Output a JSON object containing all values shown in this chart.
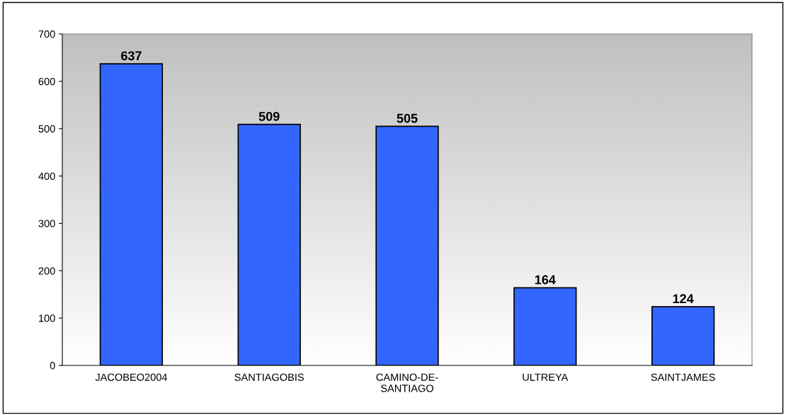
{
  "chart_data": {
    "type": "bar",
    "categories": [
      "JACOBEO2004",
      "SANTIAGOBIS",
      "CAMINO-DE-\nSANTIAGO",
      "ULTREYA",
      "SAINTJAMES"
    ],
    "values": [
      637,
      509,
      505,
      164,
      124
    ],
    "color": "#3366ff",
    "ylim": [
      0,
      700
    ],
    "yticks": [
      0,
      100,
      200,
      300,
      400,
      500,
      600,
      700
    ],
    "data_labels": true,
    "grid": false,
    "legend": false
  }
}
